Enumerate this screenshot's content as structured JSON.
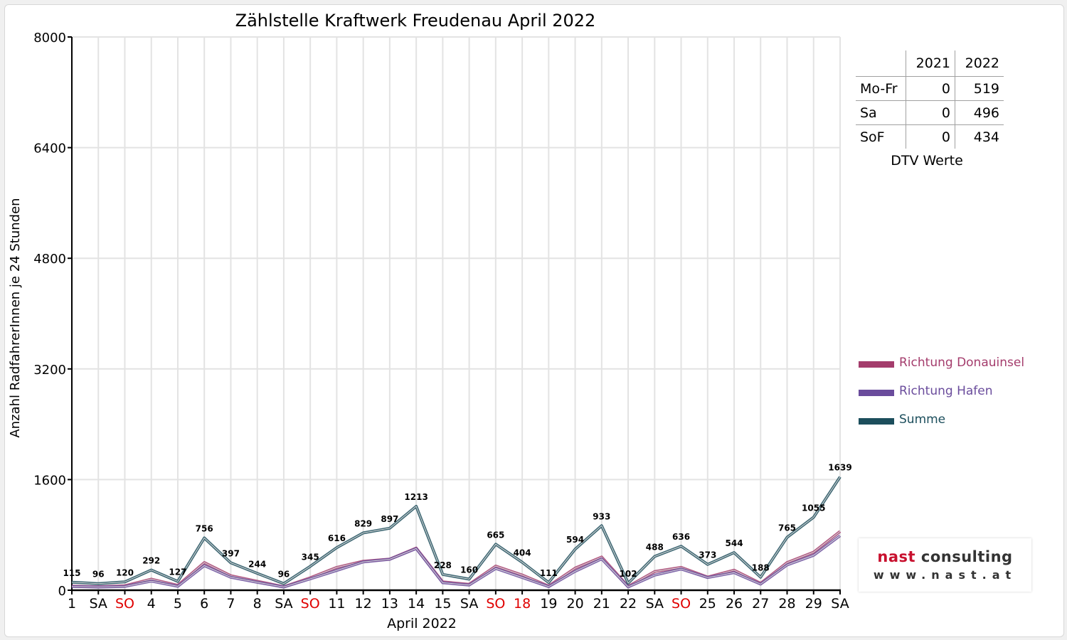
{
  "chart_data": {
    "type": "line",
    "title": "Zählstelle Kraftwerk Freudenau April 2022",
    "xlabel": "April 2022",
    "ylabel": "Anzahl RadfahrerInnen je 24 Stunden",
    "ylim": [
      0,
      8000
    ],
    "yticks": [
      0,
      1600,
      3200,
      4800,
      6400,
      8000
    ],
    "grid": true,
    "legend_position": "right",
    "categories": [
      "1",
      "SA",
      "SO",
      "4",
      "5",
      "6",
      "7",
      "8",
      "SA",
      "SO",
      "11",
      "12",
      "13",
      "14",
      "15",
      "SA",
      "SO",
      "18",
      "19",
      "20",
      "21",
      "22",
      "SA",
      "SO",
      "25",
      "26",
      "27",
      "28",
      "29",
      "SA"
    ],
    "holiday_categories": [
      2,
      9,
      16,
      17,
      23
    ],
    "series": [
      {
        "name": "Richtung Donauinsel",
        "color": "#a43c6c",
        "values": [
          60,
          50,
          65,
          160,
          70,
          400,
          210,
          130,
          50,
          180,
          330,
          420,
          450,
          610,
          120,
          85,
          350,
          220,
          60,
          320,
          480,
          55,
          270,
          330,
          190,
          290,
          100,
          400,
          550,
          850
        ]
      },
      {
        "name": "Richtung Hafen",
        "color": "#6a4c9c",
        "values": [
          55,
          46,
          55,
          132,
          57,
          356,
          187,
          114,
          46,
          165,
          286,
          409,
          447,
          603,
          108,
          75,
          315,
          184,
          51,
          274,
          453,
          47,
          218,
          306,
          183,
          254,
          88,
          365,
          505,
          789
        ]
      },
      {
        "name": "Summe",
        "color": "#1c4e5c",
        "values": [
          115,
          96,
          120,
          292,
          127,
          756,
          397,
          244,
          96,
          345,
          616,
          829,
          897,
          1213,
          228,
          160,
          665,
          404,
          111,
          594,
          933,
          102,
          488,
          636,
          373,
          544,
          188,
          765,
          1055,
          1639
        ]
      }
    ],
    "data_labels": [
      115,
      96,
      120,
      292,
      127,
      756,
      397,
      244,
      96,
      345,
      616,
      829,
      897,
      1213,
      228,
      160,
      665,
      404,
      111,
      594,
      933,
      102,
      488,
      636,
      373,
      544,
      188,
      765,
      1055,
      1639
    ]
  },
  "dtv": {
    "headers": [
      "",
      "2021",
      "2022"
    ],
    "rows": [
      {
        "label": "Mo-Fr",
        "y2021": "0",
        "y2022": "519"
      },
      {
        "label": "Sa",
        "y2021": "0",
        "y2022": "496"
      },
      {
        "label": "SoF",
        "y2021": "0",
        "y2022": "434"
      }
    ],
    "caption": "DTV Werte"
  },
  "legend": [
    {
      "label": "Richtung Donauinsel",
      "color": "#a43c6c"
    },
    {
      "label": "Richtung Hafen",
      "color": "#6a4c9c"
    },
    {
      "label": "Summe",
      "color": "#1c4e5c"
    }
  ],
  "logo": {
    "brand": "nast",
    "word": "consulting",
    "url": "www.nast.at"
  }
}
